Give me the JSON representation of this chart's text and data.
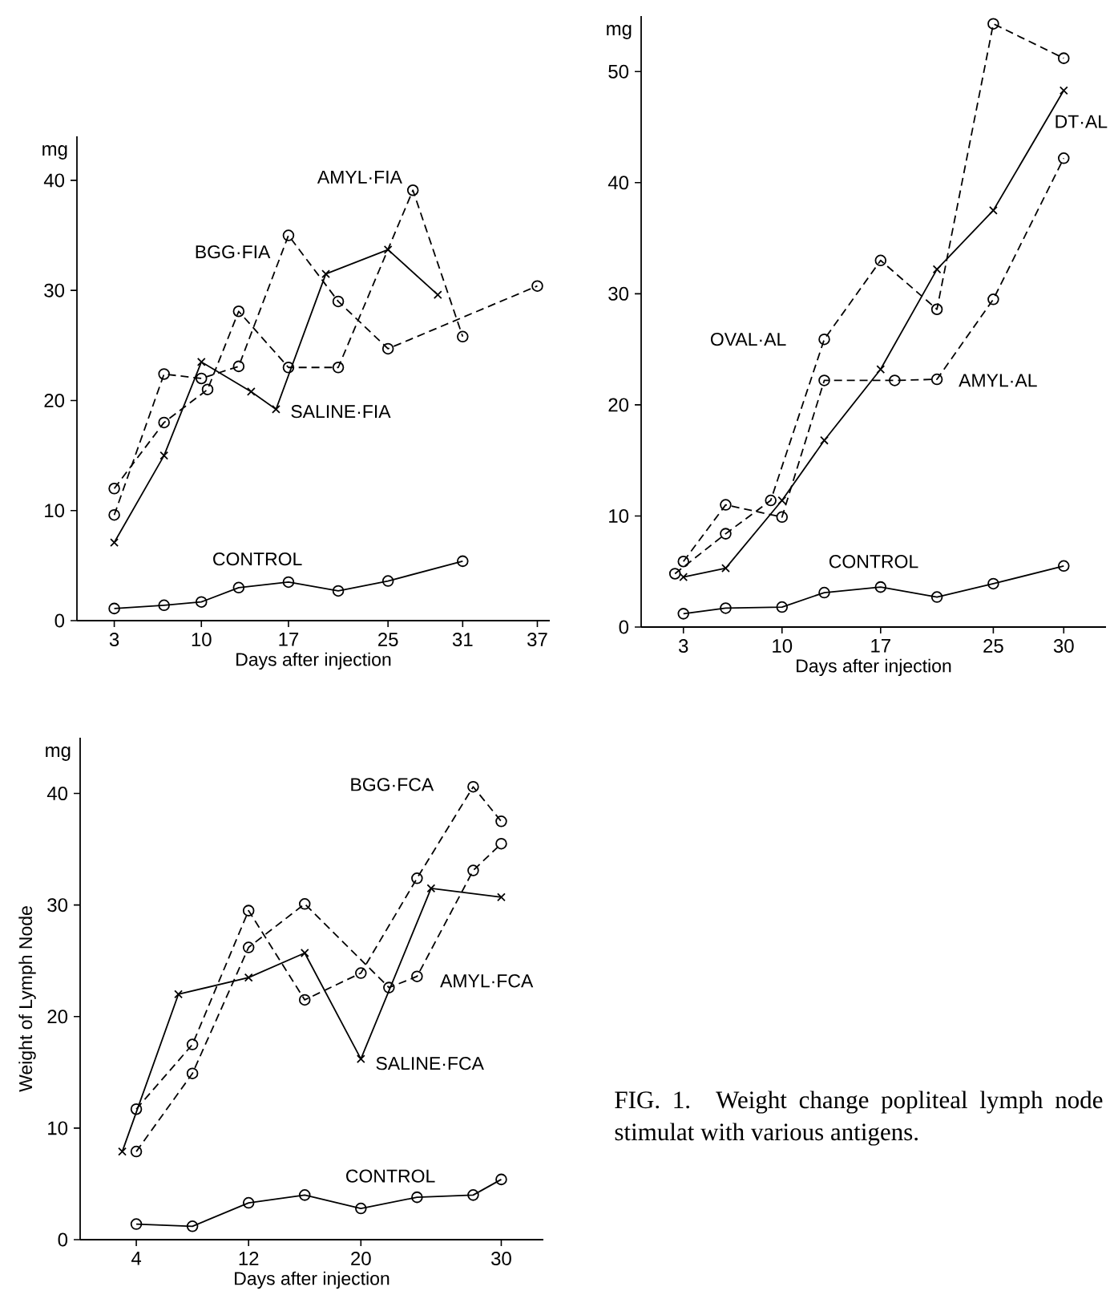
{
  "chart_data": [
    {
      "type": "line",
      "xlabel": "Days after injection",
      "ylabel": "mg",
      "xlim": [
        0,
        38
      ],
      "ylim": [
        0,
        44
      ],
      "xticks": [
        3,
        10,
        17,
        25,
        31,
        37
      ],
      "yticks": [
        0,
        10,
        20,
        30,
        40
      ],
      "legend": false,
      "series": [
        {
          "name": "SALINE·FIA",
          "color": "#000000",
          "marker": "cross",
          "line_style": "solid",
          "x": [
            3,
            7,
            10,
            14,
            16,
            20,
            25,
            29
          ],
          "values": [
            7.1,
            15,
            23.5,
            20.8,
            19.2,
            31.5,
            33.7,
            29.6
          ]
        },
        {
          "name": "BGG·FIA",
          "color": "#000000",
          "marker": "circle",
          "line_style": "dashed",
          "x": [
            3,
            7,
            10,
            13,
            17,
            21,
            25,
            37
          ],
          "values": [
            9.6,
            22.4,
            22,
            23.1,
            35,
            29,
            24.7,
            30.4
          ]
        },
        {
          "name": "AMYL·FIA",
          "color": "#000000",
          "marker": "circle",
          "line_style": "dashed",
          "x": [
            3,
            7,
            10.5,
            13,
            17,
            21,
            27,
            31
          ],
          "values": [
            12,
            18,
            21,
            28.1,
            23,
            23,
            39.1,
            25.8
          ]
        },
        {
          "name": "CONTROL",
          "color": "#000000",
          "marker": "circle",
          "line_style": "solid",
          "x": [
            3,
            7,
            10,
            13,
            17,
            21,
            25,
            31
          ],
          "values": [
            1.1,
            1.4,
            1.7,
            3,
            3.5,
            2.7,
            3.6,
            5.4
          ]
        }
      ]
    },
    {
      "type": "line",
      "xlabel": "Days after injection",
      "ylabel": "mg",
      "xlim": [
        0,
        33
      ],
      "ylim": [
        0,
        55
      ],
      "xticks": [
        3,
        10,
        17,
        25,
        30
      ],
      "yticks": [
        0,
        10,
        20,
        30,
        40,
        50
      ],
      "legend": false,
      "series": [
        {
          "name": "OVAL·AL",
          "color": "#000000",
          "marker": "circle",
          "line_style": "dashed",
          "x": [
            2.4,
            6,
            9.2,
            13,
            17,
            21,
            25,
            30
          ],
          "values": [
            4.8,
            8.4,
            11.4,
            25.9,
            33,
            28.6,
            54.3,
            51.2
          ]
        },
        {
          "name": "DT·AL",
          "color": "#000000",
          "marker": "cross",
          "line_style": "solid",
          "x": [
            3,
            6,
            10,
            13,
            17,
            21,
            25,
            30
          ],
          "values": [
            4.5,
            5.3,
            11.4,
            16.8,
            23.2,
            32.2,
            37.5,
            48.3
          ]
        },
        {
          "name": "AMYL·AL",
          "color": "#000000",
          "marker": "circle",
          "line_style": "dashed",
          "x": [
            3,
            6,
            10,
            13,
            18,
            21,
            25,
            30
          ],
          "values": [
            5.9,
            11,
            9.9,
            22.2,
            22.2,
            22.3,
            29.5,
            42.2
          ]
        },
        {
          "name": "CONTROL",
          "color": "#000000",
          "marker": "circle",
          "line_style": "solid",
          "x": [
            3,
            6,
            10,
            13,
            17,
            21,
            25,
            30
          ],
          "values": [
            1.2,
            1.7,
            1.8,
            3.1,
            3.6,
            2.7,
            3.9,
            5.5
          ]
        }
      ]
    },
    {
      "type": "line",
      "xlabel": "Days after injection",
      "ylabel": "mg",
      "xlim": [
        0,
        33
      ],
      "ylim": [
        0,
        45
      ],
      "xticks": [
        4,
        12,
        20,
        30
      ],
      "yticks": [
        0,
        10,
        20,
        30,
        40
      ],
      "legend": false,
      "annotations": [
        "Weight of Lymph Node",
        "FIG. 1. Weight change popliteal lymph node stimulat with various antigens."
      ],
      "series": [
        {
          "name": "SALINE·FCA",
          "color": "#000000",
          "marker": "cross",
          "line_style": "solid",
          "x": [
            3,
            7,
            12,
            16,
            20,
            25,
            30
          ],
          "values": [
            7.9,
            22,
            23.5,
            25.7,
            16.2,
            31.5,
            30.7
          ]
        },
        {
          "name": "BGG·FCA",
          "color": "#000000",
          "marker": "circle",
          "line_style": "dashed",
          "x": [
            4,
            8,
            12,
            16,
            20,
            24,
            28,
            30
          ],
          "values": [
            11.7,
            17.5,
            29.5,
            21.5,
            23.9,
            32.4,
            40.6,
            37.5
          ]
        },
        {
          "name": "AMYL·FCA",
          "color": "#000000",
          "marker": "circle",
          "line_style": "dashed",
          "x": [
            4,
            8,
            12,
            16,
            22,
            24,
            28,
            30
          ],
          "values": [
            7.9,
            14.9,
            26.2,
            30.1,
            22.6,
            23.6,
            33.1,
            35.5
          ]
        },
        {
          "name": "CONTROL",
          "color": "#000000",
          "marker": "circle",
          "line_style": "solid",
          "x": [
            4,
            8,
            12,
            16,
            20,
            24,
            28,
            30
          ],
          "values": [
            1.4,
            1.2,
            3.3,
            4,
            2.8,
            3.8,
            4,
            5.4
          ]
        }
      ]
    }
  ]
}
